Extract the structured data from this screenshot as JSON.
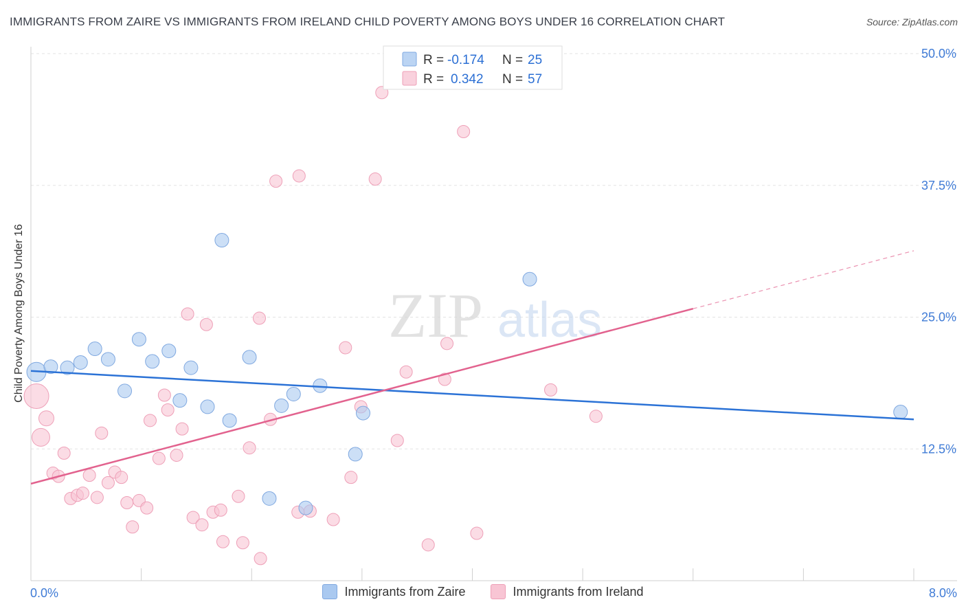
{
  "chart_data": {
    "type": "scatter",
    "title": "IMMIGRANTS FROM ZAIRE VS IMMIGRANTS FROM IRELAND CHILD POVERTY AMONG BOYS UNDER 16 CORRELATION CHART",
    "source": "Source: ZipAtlas.com",
    "ylabel": "Child Poverty Among Boys Under 16",
    "xlabel": "",
    "xlim": [
      0,
      8.0
    ],
    "ylim": [
      0,
      50.0
    ],
    "x_tick_labels": [
      "0.0%",
      "8.0%"
    ],
    "y_ticks": [
      12.5,
      25.0,
      37.5,
      50.0
    ],
    "y_tick_labels": [
      "12.5%",
      "25.0%",
      "37.5%",
      "50.0%"
    ],
    "watermark": {
      "zip": "ZIP",
      "atlas": "atlas"
    },
    "series": [
      {
        "name": "Immigrants from Zaire",
        "color": "#aac9f0",
        "edge": "#7fa8e0",
        "line_color": "#2b72d6",
        "R": "-0.174",
        "N": "25",
        "trend": {
          "x0": 0.0,
          "y0": 19.9,
          "x1": 8.0,
          "y1": 15.3
        },
        "points": [
          [
            0.05,
            19.8,
            14
          ],
          [
            0.18,
            20.3,
            10
          ],
          [
            0.33,
            20.2,
            10
          ],
          [
            0.45,
            20.7,
            10
          ],
          [
            0.58,
            22.0,
            10
          ],
          [
            0.7,
            21.0,
            10
          ],
          [
            0.85,
            18.0,
            10
          ],
          [
            0.98,
            22.9,
            10
          ],
          [
            1.1,
            20.8,
            10
          ],
          [
            1.25,
            21.8,
            10
          ],
          [
            1.35,
            17.1,
            10
          ],
          [
            1.45,
            20.2,
            10
          ],
          [
            1.6,
            16.5,
            10
          ],
          [
            1.73,
            32.3,
            10
          ],
          [
            1.8,
            15.2,
            10
          ],
          [
            1.98,
            21.2,
            10
          ],
          [
            2.27,
            16.6,
            10
          ],
          [
            2.38,
            17.7,
            10
          ],
          [
            2.62,
            18.5,
            10
          ],
          [
            2.94,
            12.0,
            10
          ],
          [
            3.01,
            15.9,
            10
          ],
          [
            2.16,
            7.8,
            10
          ],
          [
            2.49,
            6.9,
            10
          ],
          [
            4.52,
            28.6,
            10
          ],
          [
            7.88,
            16.0,
            10
          ]
        ]
      },
      {
        "name": "Immigrants from Ireland",
        "color": "#f8c5d4",
        "edge": "#ee9fb7",
        "line_color": "#e2628e",
        "R": "0.342",
        "N": "57",
        "trend": {
          "x0": 0.0,
          "y0": 9.2,
          "x1": 6.0,
          "y1": 25.8
        },
        "trend_dashed": {
          "x0": 6.0,
          "y0": 25.8,
          "x1": 8.0,
          "y1": 31.3
        },
        "points": [
          [
            0.05,
            17.5,
            18
          ],
          [
            0.09,
            13.6,
            13
          ],
          [
            0.14,
            15.4,
            11
          ],
          [
            0.2,
            10.2,
            9
          ],
          [
            0.25,
            9.9,
            9
          ],
          [
            0.3,
            12.1,
            9
          ],
          [
            0.36,
            7.8,
            9
          ],
          [
            0.42,
            8.1,
            9
          ],
          [
            0.47,
            8.3,
            9
          ],
          [
            0.53,
            10.0,
            9
          ],
          [
            0.6,
            7.9,
            9
          ],
          [
            0.64,
            14.0,
            9
          ],
          [
            0.7,
            9.3,
            9
          ],
          [
            0.76,
            10.3,
            9
          ],
          [
            0.82,
            9.8,
            9
          ],
          [
            0.87,
            7.4,
            9
          ],
          [
            0.92,
            5.1,
            9
          ],
          [
            0.98,
            7.6,
            9
          ],
          [
            1.05,
            6.9,
            9
          ],
          [
            1.08,
            15.2,
            9
          ],
          [
            1.16,
            11.6,
            9
          ],
          [
            1.21,
            17.6,
            9
          ],
          [
            1.24,
            16.2,
            9
          ],
          [
            1.32,
            11.9,
            9
          ],
          [
            1.37,
            14.4,
            9
          ],
          [
            1.42,
            25.3,
            9
          ],
          [
            1.47,
            6.0,
            9
          ],
          [
            1.55,
            5.3,
            9
          ],
          [
            1.59,
            24.3,
            9
          ],
          [
            1.65,
            6.5,
            9
          ],
          [
            1.72,
            6.7,
            9
          ],
          [
            1.74,
            3.7,
            9
          ],
          [
            1.88,
            8.0,
            9
          ],
          [
            1.92,
            3.6,
            9
          ],
          [
            1.98,
            12.6,
            9
          ],
          [
            2.07,
            24.9,
            9
          ],
          [
            2.08,
            2.1,
            9
          ],
          [
            2.17,
            15.3,
            9
          ],
          [
            2.22,
            37.9,
            9
          ],
          [
            2.42,
            6.5,
            9
          ],
          [
            2.43,
            38.4,
            9
          ],
          [
            2.53,
            6.6,
            9
          ],
          [
            2.74,
            5.8,
            9
          ],
          [
            2.85,
            22.1,
            9
          ],
          [
            2.9,
            9.8,
            9
          ],
          [
            2.99,
            16.5,
            9
          ],
          [
            3.12,
            38.1,
            9
          ],
          [
            3.18,
            46.3,
            9
          ],
          [
            3.32,
            13.3,
            9
          ],
          [
            3.4,
            19.8,
            9
          ],
          [
            3.6,
            3.4,
            9
          ],
          [
            3.75,
            19.1,
            9
          ],
          [
            3.77,
            22.5,
            9
          ],
          [
            3.92,
            42.6,
            9
          ],
          [
            4.04,
            4.5,
            9
          ],
          [
            4.71,
            18.1,
            9
          ],
          [
            5.12,
            15.6,
            9
          ]
        ]
      }
    ],
    "legend": {
      "r_label": "R =",
      "n_label": "N ="
    }
  }
}
